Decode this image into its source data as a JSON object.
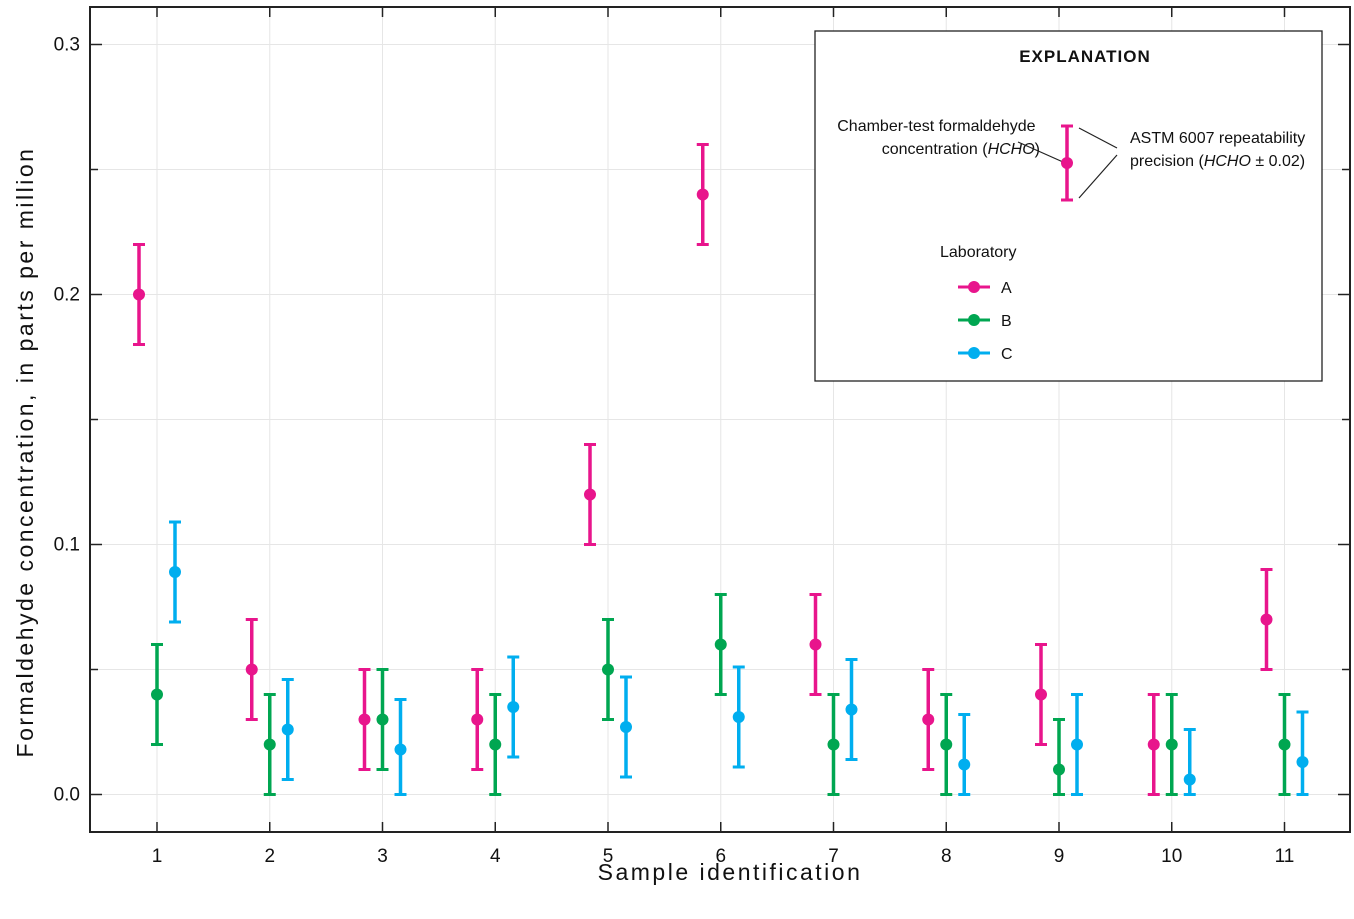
{
  "chart_data": {
    "type": "scatter",
    "xlabel": "Sample identification",
    "ylabel": "Formaldehyde concentration, in parts per million",
    "categories": [
      "1",
      "2",
      "3",
      "4",
      "5",
      "6",
      "7",
      "8",
      "9",
      "10",
      "11"
    ],
    "yticks": [
      "0.0",
      "0.1",
      "0.2",
      "0.3"
    ],
    "ylim": [
      -0.015,
      0.315
    ],
    "error_bar": 0.02,
    "grid": true,
    "legend_position": "top-right",
    "series": [
      {
        "name": "A",
        "color": "#e8158c",
        "values": [
          0.2,
          0.05,
          0.03,
          0.03,
          0.12,
          0.24,
          0.06,
          0.03,
          0.04,
          0.02,
          0.07
        ]
      },
      {
        "name": "B",
        "color": "#00a651",
        "values": [
          0.04,
          0.02,
          0.03,
          0.02,
          0.05,
          0.06,
          0.02,
          0.02,
          0.01,
          0.02,
          0.02
        ]
      },
      {
        "name": "C",
        "color": "#00aeef",
        "values": [
          0.089,
          0.026,
          0.018,
          0.035,
          0.027,
          0.031,
          0.034,
          0.012,
          0.02,
          0.006,
          0.013
        ]
      }
    ],
    "legend": {
      "title": "EXPLANATION",
      "point_label_line1": "Chamber-test formaldehyde",
      "point_label_line2_prefix": "concentration (",
      "point_label_line2_italic": "HCHO",
      "point_label_line2_suffix": ")",
      "bar_label_line1": "ASTM 6007 repeatability",
      "bar_label_line2_prefix": "precision (",
      "bar_label_line2_italic": "HCHO",
      "bar_label_line2_suffix": " ± 0.02)",
      "lab_title": "Laboratory",
      "example_color": "#e8158c"
    }
  }
}
